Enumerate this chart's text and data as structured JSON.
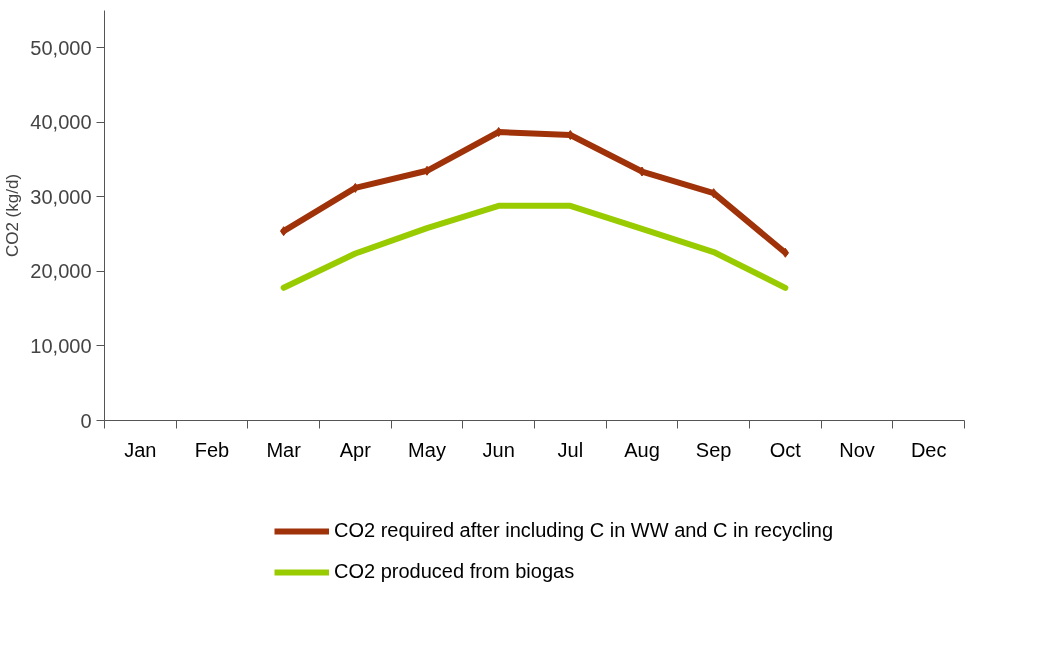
{
  "chart_data": {
    "type": "line",
    "ylabel": "CO2 (kg/d)",
    "categories": [
      "Jan",
      "Feb",
      "Mar",
      "Apr",
      "May",
      "Jun",
      "Jul",
      "Aug",
      "Sep",
      "Oct",
      "Nov",
      "Dec"
    ],
    "series": [
      {
        "name": "CO2 required after including C in WW and C in recycling",
        "color": "#a0320a",
        "marker": "diamond",
        "values": [
          null,
          null,
          25400,
          31200,
          33500,
          38700,
          38300,
          33400,
          30500,
          22500,
          null,
          null
        ]
      },
      {
        "name": "CO2 produced from biogas",
        "color": "#99cc00",
        "marker": "none",
        "values": [
          null,
          null,
          17800,
          22400,
          25800,
          28800,
          28800,
          25700,
          22600,
          17800,
          null,
          null
        ]
      }
    ],
    "ylim": [
      0,
      55000
    ],
    "yticks": [
      {
        "value": 0,
        "label": "0"
      },
      {
        "value": 10000,
        "label": "10,000"
      },
      {
        "value": 20000,
        "label": "20,000"
      },
      {
        "value": 30000,
        "label": "30,000"
      },
      {
        "value": 40000,
        "label": "40,000"
      },
      {
        "value": 50000,
        "label": "50,000"
      }
    ],
    "grid": false,
    "legend": "bottom"
  }
}
